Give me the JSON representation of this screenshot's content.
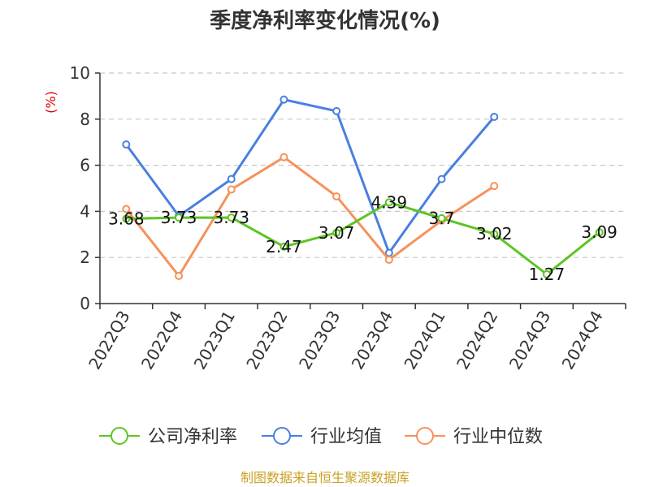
{
  "chart_data": {
    "type": "line",
    "title": "季度净利率变化情况(%)",
    "ylabel": "(%)",
    "ylim": [
      0,
      10
    ],
    "yticks": [
      "0",
      "2",
      "4",
      "6",
      "8",
      "10"
    ],
    "categories": [
      "2022Q3",
      "2022Q4",
      "2023Q1",
      "2023Q2",
      "2023Q3",
      "2023Q4",
      "2024Q1",
      "2024Q2",
      "2024Q3",
      "2024Q4"
    ],
    "grid": true,
    "legend_position": "bottom",
    "series": [
      {
        "name": "公司净利率",
        "color": "#5cc524",
        "values": [
          3.68,
          3.73,
          3.73,
          2.47,
          3.07,
          4.39,
          3.7,
          3.02,
          1.27,
          3.09
        ],
        "labels": [
          "3.68",
          "3.73",
          "3.73",
          "2.47",
          "3.07",
          "4.39",
          "3.7",
          "3.02",
          "1.27",
          "3.09"
        ]
      },
      {
        "name": "行业均值",
        "color": "#4a7fe0",
        "values": [
          6.9,
          3.8,
          5.4,
          8.85,
          8.35,
          2.2,
          5.4,
          8.1,
          null,
          null
        ]
      },
      {
        "name": "行业中位数",
        "color": "#f7915a",
        "values": [
          4.1,
          1.2,
          4.95,
          6.35,
          4.65,
          1.9,
          3.6,
          5.1,
          null,
          null
        ]
      }
    ]
  },
  "source": "制图数据来自恒生聚源数据库"
}
